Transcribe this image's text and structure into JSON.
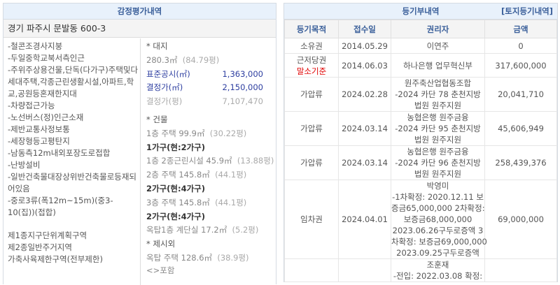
{
  "appraisal": {
    "title": "감정평가내역",
    "address": "경기 파주시 문발동 600-3",
    "notes": [
      "-철콘조경사지붕",
      "-두일중학교북서측인근",
      "-주위주상용건물,단독(다가구)주택및다세대주택,각종근린생활시설,아파트,학교,공원등혼재한지대",
      "-차량접근가능",
      "-노선버스(정)인근소재",
      "-제반교통사정보통",
      "-세장형등고평탄지",
      "-남동측12m내외포장도로접합",
      "-난방설비",
      "-일반건축물대장상위반건축물로등재되어있음",
      "-중로3류(폭12m~15m)(중3-10(집))(접합)"
    ],
    "zones": [
      "제1종지구단위계획구역",
      "제2종일반주거지역",
      "가축사육제한구역(전부제한)"
    ],
    "land": {
      "heading": "* 대지",
      "area": "280.3㎡",
      "area_pyeong": "(84.79평)",
      "std_label": "표준공시(㎡)",
      "std_value": "1,363,000",
      "dec_label": "결정가(㎡)",
      "dec_value": "2,150,000",
      "decp_label": "결정가(평)",
      "decp_value": "7,107,470"
    },
    "building": {
      "heading": "* 건물",
      "l1": "1층 주택 99.9㎡",
      "l1p": "(30.22평)",
      "h1": "1가구(현:2가구)",
      "l2": "1층 2종근린시설 45.9㎡",
      "l2p": "(13.88평)",
      "l3": "2층 주택 145.8㎡",
      "l3p": "(44.1평)",
      "h2": "2가구(현:4가구)",
      "l4": "3층 주택 145.8㎡",
      "l4p": "(44.1평)",
      "h3": "2가구(현:4가구)",
      "l5": "옥탑1층 계단실 17.2㎡",
      "l5p": "(5.2평)"
    },
    "extra": {
      "heading": "* 제시외",
      "l1": "옥탑 주택 128.6㎡",
      "l1p": "(38.9평)",
      "l2": "<>포함"
    }
  },
  "registry": {
    "title": "등기부내역",
    "link": "[토지등기내역]",
    "columns": [
      "등기목적",
      "접수일",
      "권리자",
      "금액"
    ],
    "rows": [
      {
        "purpose": "소유권",
        "note": "",
        "date": "2014.05.29",
        "holder": [
          "이연주"
        ],
        "amount": "0"
      },
      {
        "purpose": "근저당권",
        "note": "말소기준",
        "date": "2014.06.03",
        "holder": [
          "하나은행 업무혁신부"
        ],
        "amount": "317,600,000"
      },
      {
        "purpose": "가압류",
        "note": "",
        "date": "2024.02.28",
        "holder": [
          "원주축산업협동조합",
          "-2024 카단 78 춘천지방",
          "법원 원주지원"
        ],
        "amount": "20,041,710"
      },
      {
        "purpose": "가압류",
        "note": "",
        "date": "2024.03.14",
        "holder": [
          "농협은행 원주금융",
          "-2024 카단 95 춘천지방",
          "법원 원주지원"
        ],
        "amount": "45,606,949"
      },
      {
        "purpose": "가압류",
        "note": "",
        "date": "2024.03.14",
        "holder": [
          "농협은행 원주금융",
          "-2024 카단 96 춘천지방",
          "법원 원주지원"
        ],
        "amount": "258,439,376"
      },
      {
        "purpose": "임차권",
        "note": "",
        "date": "2024.04.01",
        "holder": [
          "박영미",
          "-1차확정: 2020.12.11 보",
          "증금65,000,000 2차확정:",
          "보증금68,000,000",
          "2023.06.26구두로증액 3",
          "차확정: 보증금69,000,000",
          "2023.09.25구두로증액"
        ],
        "amount": "69,000,000"
      },
      {
        "purpose": "",
        "note": "",
        "date": "",
        "holder": [
          "조훈재",
          "-전입: 2022.03.08 확정:"
        ],
        "amount": ""
      }
    ]
  }
}
